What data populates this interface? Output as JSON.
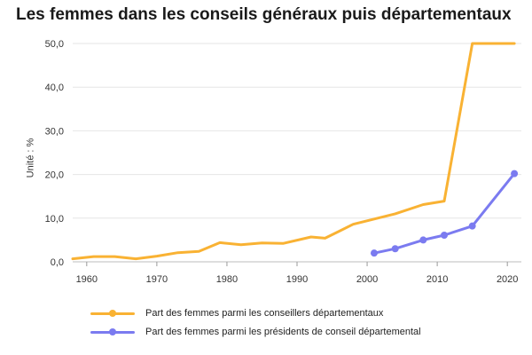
{
  "chart_data": {
    "type": "line",
    "title": "Les femmes dans les conseils généraux puis départementaux",
    "ylabel": "Unité : %",
    "xlabel": "",
    "xlim": [
      1958,
      2022
    ],
    "ylim": [
      0,
      50
    ],
    "x_ticks": [
      1960,
      1970,
      1980,
      1990,
      2000,
      2010,
      2020
    ],
    "y_ticks": [
      "0,0",
      "10,0",
      "20,0",
      "30,0",
      "40,0",
      "50,0"
    ],
    "y_tick_values": [
      0,
      10,
      20,
      30,
      40,
      50
    ],
    "grid": true,
    "legend_position": "bottom",
    "series": [
      {
        "name": "Part des femmes parmi les conseillers départementaux",
        "color": "#F9B233",
        "markers": false,
        "x": [
          1958,
          1961,
          1964,
          1967,
          1970,
          1973,
          1976,
          1979,
          1982,
          1985,
          1988,
          1992,
          1994,
          1998,
          2001,
          2004,
          2008,
          2011,
          2015,
          2021
        ],
        "y": [
          0.7,
          1.2,
          1.2,
          0.7,
          1.3,
          2.1,
          2.4,
          4.4,
          3.9,
          4.3,
          4.2,
          5.7,
          5.4,
          8.6,
          9.8,
          11.0,
          13.1,
          13.9,
          50.0,
          50.0
        ]
      },
      {
        "name": "Part des femmes parmi les présidents de conseil départemental",
        "color": "#7B7BF0",
        "markers": true,
        "x": [
          2001,
          2004,
          2008,
          2011,
          2015,
          2021
        ],
        "y": [
          2.0,
          3.0,
          5.0,
          6.1,
          8.2,
          20.2
        ]
      }
    ]
  }
}
